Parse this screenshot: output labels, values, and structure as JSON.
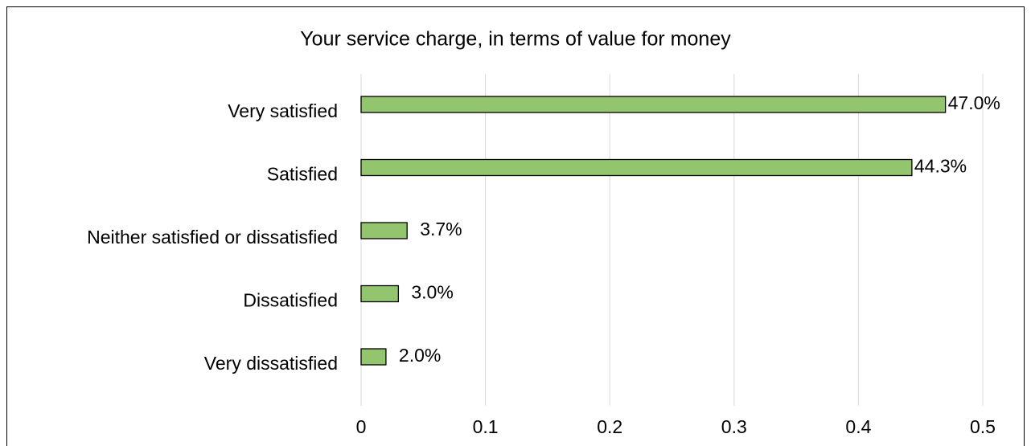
{
  "chart_data": {
    "type": "barh",
    "title": "Your service charge, in terms of value for money",
    "categories": [
      "Very satisfied",
      "Satisfied",
      "Neither satisfied or dissatisfied",
      "Dissatisfied",
      "Very dissatisfied"
    ],
    "values": [
      0.47,
      0.443,
      0.037,
      0.03,
      0.02
    ],
    "value_labels": [
      "47.0%",
      "44.3%",
      "3.7%",
      "3.0%",
      "2.0%"
    ],
    "color": "#92c56e",
    "xlim": [
      0,
      0.5
    ],
    "xticks": [
      0,
      0.1,
      0.2,
      0.3,
      0.4,
      0.5
    ],
    "grid": true
  }
}
